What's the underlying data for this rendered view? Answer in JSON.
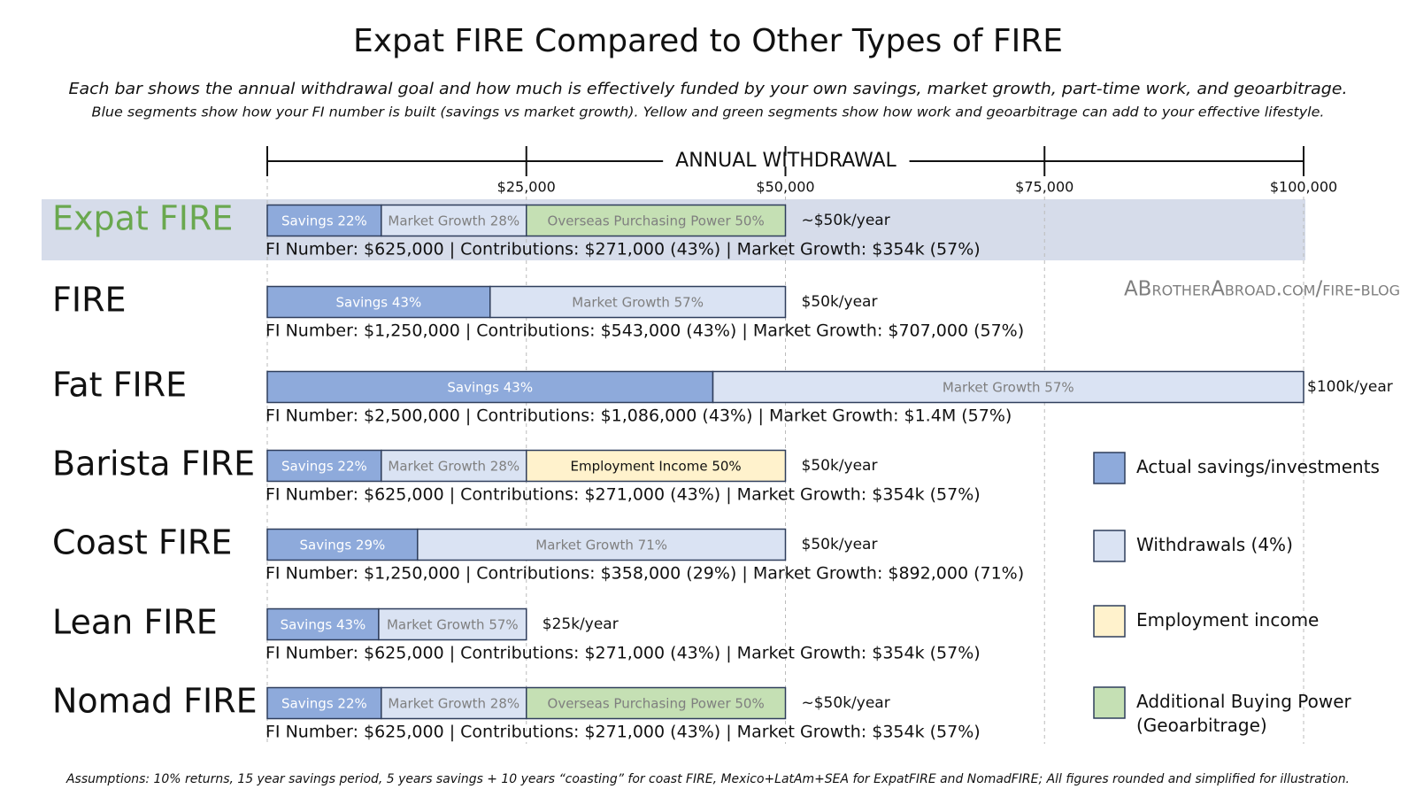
{
  "chart_data": {
    "type": "stacked-bar-horizontal",
    "title": "Expat FIRE Compared to Other Types of FIRE",
    "subtitle": "Each bar shows the annual withdrawal goal and how much is effectively funded by your own savings, market growth, part-time work, and geoarbitrage.",
    "subtitle_2": "Blue segments show how your FI number is built (savings vs market growth). Yellow and green segments show how work and geoarbitrage can add to your effective lifestyle.",
    "footnote": "Assumptions: 10% returns, 15 year savings period, 5 years savings + 10 years “coasting” for coast FIRE, Mexico+LatAm+SEA for ExpatFIRE and NomadFIRE; All figures rounded and simplified for illustration.",
    "watermark": "ABrotherAbroad.com/fire-blog",
    "x_label": "ANNUAL WITHDRAWAL",
    "xlim": [
      0,
      100000
    ],
    "xticks": [
      {
        "value": 25000,
        "label": "$25,000"
      },
      {
        "value": 50000,
        "label": "$50,000"
      },
      {
        "value": 75000,
        "label": "$75,000"
      },
      {
        "value": 100000,
        "label": "$100,000"
      }
    ],
    "grid": true,
    "categories": [
      "Expat FIRE",
      "FIRE",
      "Fat FIRE",
      "Barista FIRE",
      "Coast FIRE",
      "Lean FIRE",
      "Nomad FIRE"
    ],
    "highlight_index": 0,
    "highlight_color": "#d6dcea",
    "highlight_text_color": "#6aa84f",
    "end_labels": [
      "~$50k/year",
      "$50k/year",
      "$100k/year",
      "$50k/year",
      "$50k/year",
      "$25k/year",
      "~$50k/year"
    ],
    "notes": [
      "FI Number: $625,000 | Contributions: $271,000 (43%) | Market Growth: $354k (57%)",
      "FI Number: $1,250,000 | Contributions: $543,000 (43%) | Market Growth: $707,000 (57%)",
      "FI Number: $2,500,000 | Contributions: $1,086,000 (43%) | Market Growth: $1.4M (57%)",
      "FI Number: $625,000 | Contributions: $271,000 (43%) | Market Growth: $354k (57%)",
      "FI Number: $1,250,000 | Contributions: $358,000 (29%) | Market Growth: $892,000 (71%)",
      "FI Number: $625,000 | Contributions: $271,000 (43%) | Market Growth: $354k (57%)",
      "FI Number: $625,000 | Contributions: $271,000 (43%) | Market Growth: $354k (57%)"
    ],
    "series": [
      {
        "name": "Actual savings/investments",
        "color": "#8eaadb",
        "label_color": "#ffffff",
        "values": [
          11000,
          21500,
          43000,
          11000,
          14500,
          10750,
          11000
        ],
        "segment_labels": [
          "Savings 22%",
          "Savings 43%",
          "Savings 43%",
          "Savings 22%",
          "Savings 29%",
          "Savings 43%",
          "Savings 22%"
        ]
      },
      {
        "name": "Withdrawals (4%)",
        "color": "#dae3f3",
        "label_color": "#7f7f7f",
        "values": [
          14000,
          28500,
          57000,
          14000,
          35500,
          14250,
          14000
        ],
        "segment_labels": [
          "Market Growth 28%",
          "Market Growth 57%",
          "Market Growth 57%",
          "Market Growth 28%",
          "Market Growth 71%",
          "Market Growth 57%",
          "Market Growth 28%"
        ]
      },
      {
        "name": "Employment income",
        "color": "#fff2cc",
        "label_color": "#111111",
        "values": [
          null,
          null,
          null,
          25000,
          null,
          null,
          null
        ],
        "segment_labels": [
          null,
          null,
          null,
          "Employment Income 50%",
          null,
          null,
          null
        ]
      },
      {
        "name": "Additional Buying Power (Geoarbitrage)",
        "color": "#c5e0b4",
        "label_color": "#7f7f7f",
        "values": [
          25000,
          null,
          null,
          null,
          null,
          null,
          25000
        ],
        "segment_labels": [
          "Overseas Purchasing Power 50%",
          null,
          null,
          null,
          null,
          null,
          "Overseas Purchasing Power 50%"
        ]
      }
    ]
  }
}
